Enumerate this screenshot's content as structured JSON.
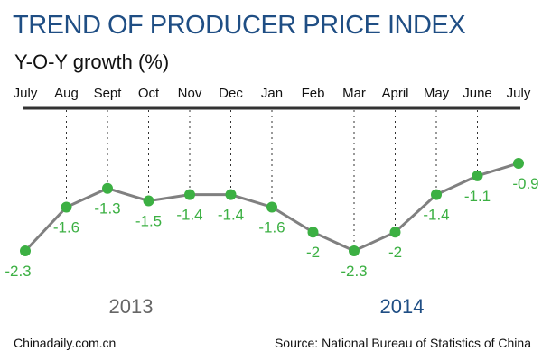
{
  "title": "TREND OF PRODUCER PRICE INDEX",
  "subtitle": "Y-O-Y growth (%)",
  "footer": {
    "credit": "Chinadaily.com.cn",
    "source": "Source: National Bureau of Statistics of China"
  },
  "chart_data": {
    "type": "line",
    "title": "TREND OF PRODUCER PRICE INDEX",
    "ylabel": "Y-O-Y growth (%)",
    "categories": [
      "July",
      "Aug",
      "Sept",
      "Oct",
      "Nov",
      "Dec",
      "Jan",
      "Feb",
      "Mar",
      "April",
      "May",
      "June",
      "July"
    ],
    "values": [
      -2.3,
      -1.6,
      -1.3,
      -1.5,
      -1.4,
      -1.4,
      -1.6,
      -2,
      -2.3,
      -2,
      -1.4,
      -1.1,
      -0.9
    ],
    "data_labels": [
      "-2.3",
      "-1.6",
      "-1.3",
      "-1.5",
      "-1.4",
      "-1.4",
      "-1.6",
      "-2",
      "-2.3",
      "-2",
      "-1.4",
      "-1.1",
      "-0.9"
    ],
    "year_labels": [
      {
        "text": "2013",
        "color": "#666666"
      },
      {
        "text": "2014",
        "color": "#1f4e84"
      }
    ],
    "grid": false,
    "colors": {
      "line": "#808080",
      "marker": "#3cb043",
      "label": "#3cb043",
      "title": "#1f4e84"
    }
  }
}
